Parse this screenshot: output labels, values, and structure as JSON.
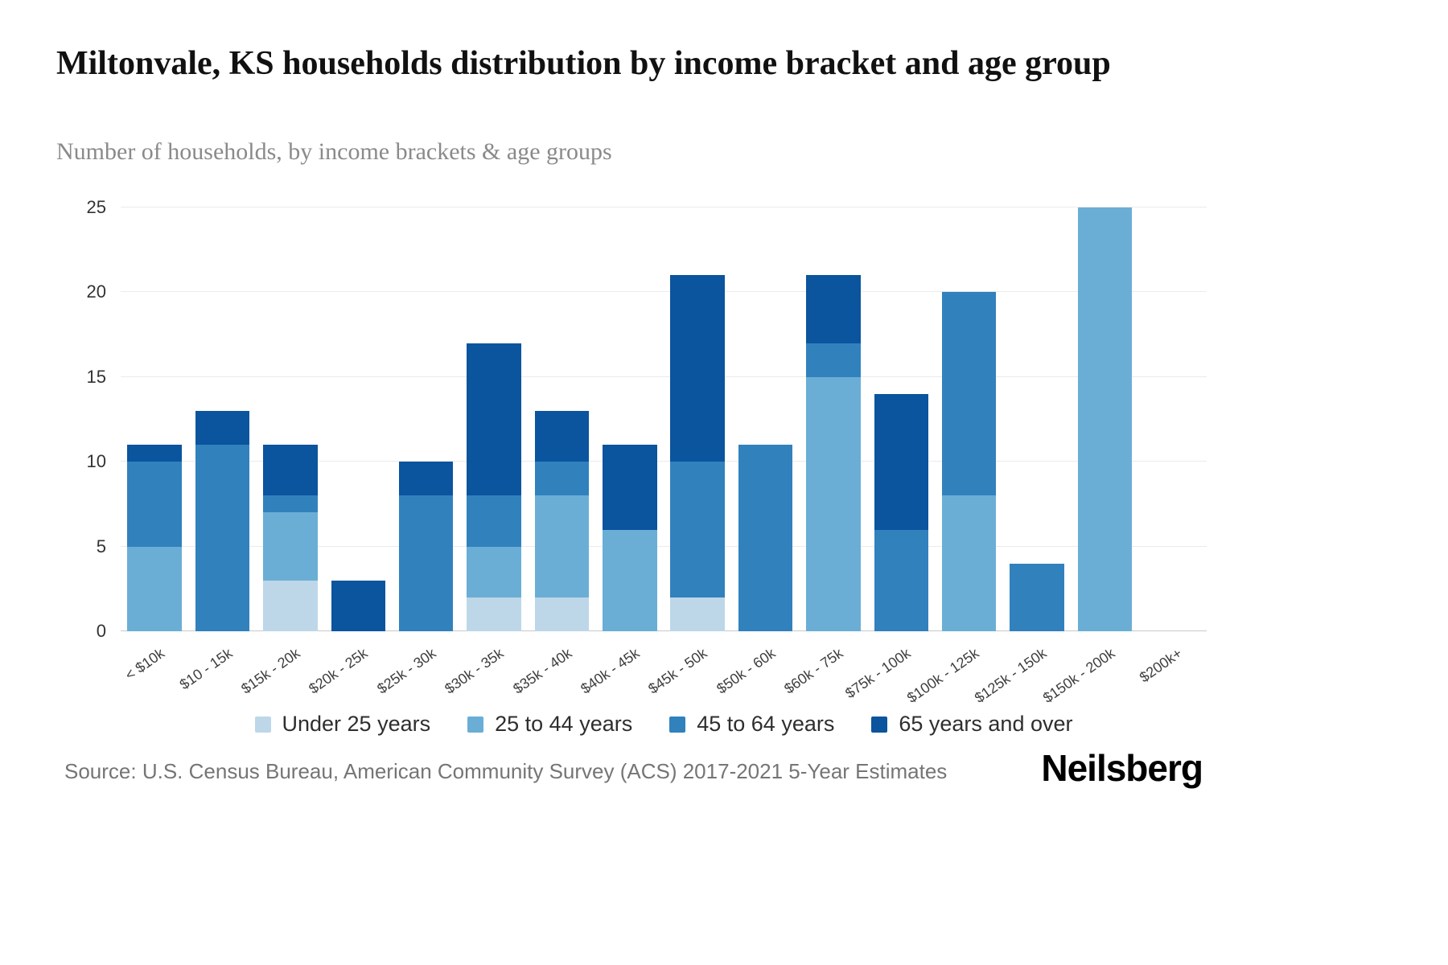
{
  "title": "Miltonvale, KS households distribution by income bracket and age group",
  "subtitle": "Number of households, by income brackets & age groups",
  "source": "Source: U.S. Census Bureau, American Community Survey (ACS) 2017-2021 5-Year Estimates",
  "brand": "Neilsberg",
  "chart_data": {
    "type": "bar",
    "stacked": true,
    "title": "Miltonvale, KS households distribution by income bracket and age group",
    "xlabel": "",
    "ylabel": "Number of households",
    "ylim": [
      0,
      25
    ],
    "yticks": [
      0,
      5,
      10,
      15,
      20,
      25
    ],
    "grid": true,
    "legend_position": "bottom",
    "categories": [
      "< $10k",
      "$10 - 15k",
      "$15k - 20k",
      "$20k - 25k",
      "$25k - 30k",
      "$30k - 35k",
      "$35k - 40k",
      "$40k - 45k",
      "$45k - 50k",
      "$50k - 60k",
      "$60k - 75k",
      "$75k - 100k",
      "$100k - 125k",
      "$125k - 150k",
      "$150k - 200k",
      "$200k+"
    ],
    "series": [
      {
        "name": "Under 25 years",
        "color": "#bdd7e9",
        "values": [
          0,
          0,
          3,
          0,
          0,
          2,
          2,
          0,
          2,
          0,
          0,
          0,
          0,
          0,
          0,
          0
        ]
      },
      {
        "name": "25 to 44 years",
        "color": "#6aaed6",
        "values": [
          5,
          0,
          4,
          0,
          0,
          3,
          6,
          6,
          0,
          0,
          15,
          0,
          8,
          0,
          25,
          0
        ]
      },
      {
        "name": "45 to 64 years",
        "color": "#3181bd",
        "values": [
          5,
          11,
          1,
          0,
          8,
          3,
          2,
          0,
          8,
          11,
          2,
          6,
          12,
          4,
          0,
          0
        ]
      },
      {
        "name": "65 years and over",
        "color": "#0b549e",
        "values": [
          1,
          2,
          3,
          3,
          2,
          9,
          3,
          5,
          11,
          0,
          4,
          8,
          0,
          0,
          0,
          0
        ]
      }
    ],
    "totals": [
      11,
      13,
      11,
      3,
      10,
      17,
      13,
      11,
      21,
      11,
      21,
      14,
      20,
      4,
      25,
      0
    ]
  }
}
